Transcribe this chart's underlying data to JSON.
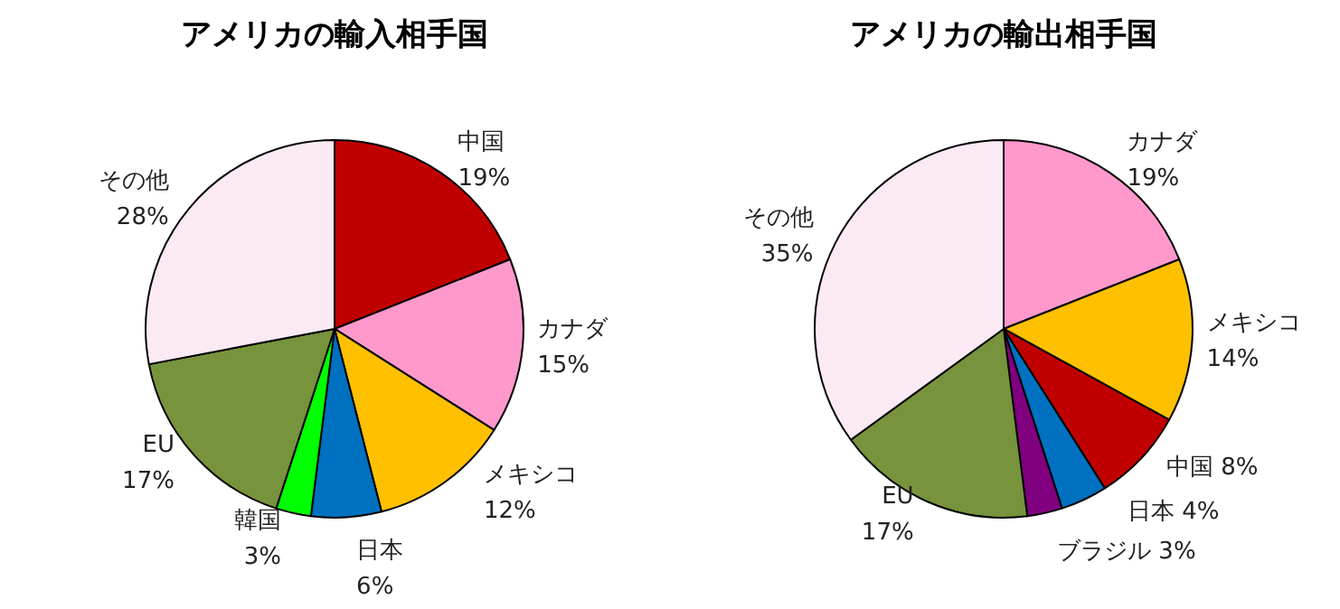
{
  "chart_data": [
    {
      "type": "pie",
      "title": "アメリカの輸入相手国",
      "categories": [
        "中国",
        "カナダ",
        "メキシコ",
        "日本",
        "韓国",
        "EU",
        "その他"
      ],
      "values": [
        19,
        15,
        12,
        6,
        3,
        17,
        28
      ],
      "colors": [
        "#c00000",
        "#ff99cc",
        "#ffc000",
        "#0070c0",
        "#00ff00",
        "#77933c",
        "#fbeaf4"
      ],
      "value_labels": [
        "19%",
        "15%",
        "12%",
        "6%",
        "3%",
        "17%",
        "28%"
      ],
      "legend": false
    },
    {
      "type": "pie",
      "title": "アメリカの輸出相手国",
      "categories": [
        "カナダ",
        "メキシコ",
        "中国",
        "日本",
        "ブラジル",
        "EU",
        "その他"
      ],
      "values": [
        19,
        14,
        8,
        4,
        3,
        17,
        35
      ],
      "colors": [
        "#ff99cc",
        "#ffc000",
        "#c00000",
        "#0070c0",
        "#800080",
        "#77933c",
        "#fbeaf4"
      ],
      "value_labels": [
        "19%",
        "14%",
        "8%",
        "4%",
        "3%",
        "17%",
        "35%"
      ],
      "legend": false
    }
  ]
}
